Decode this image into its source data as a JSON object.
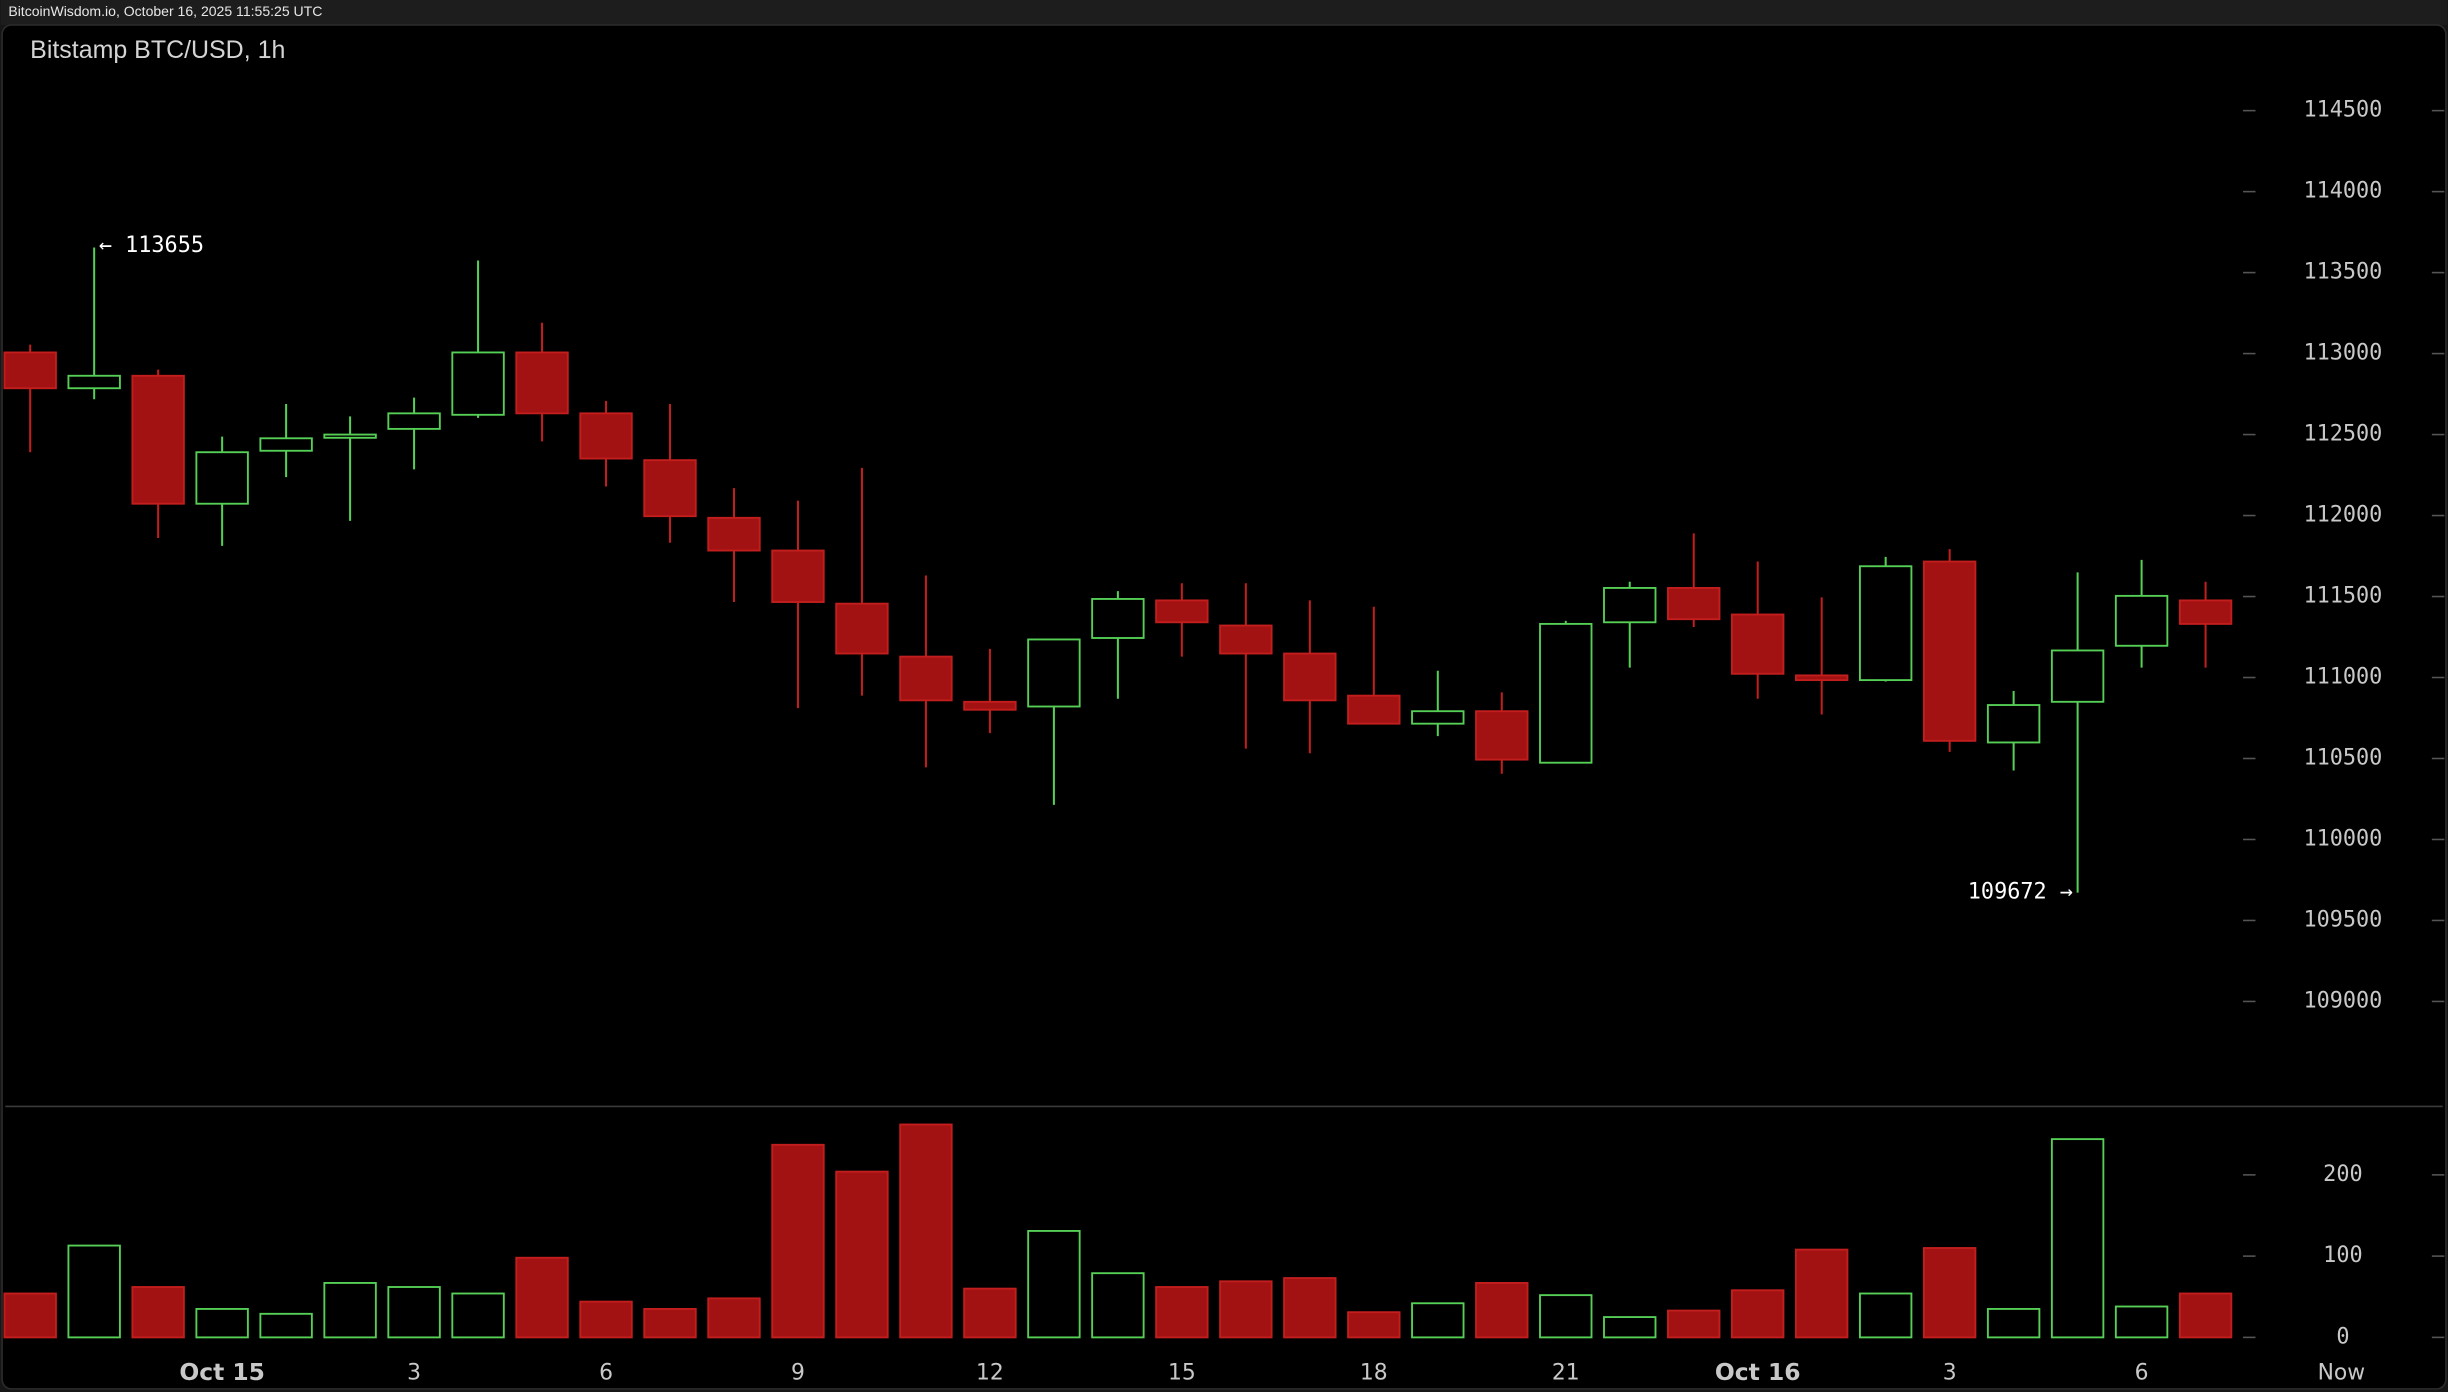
{
  "header": {
    "text": "BitcoinWisdom.io, October 16, 2025 11:55:25 UTC"
  },
  "chart_data": {
    "type": "candlestick",
    "title": "Bitstamp BTC/USD, 1h",
    "categories": [
      null,
      null,
      null,
      "Oct 15",
      null,
      null,
      "3",
      null,
      null,
      "6",
      null,
      null,
      "9",
      null,
      null,
      "12",
      null,
      null,
      "15",
      null,
      null,
      "18",
      null,
      null,
      "21",
      null,
      null,
      "Oct 16",
      null,
      null,
      "3",
      null,
      null,
      "6",
      null
    ],
    "now_label": "Now",
    "open": [
      113007,
      112786,
      112863,
      112073,
      112400,
      112480,
      112535,
      112622,
      113007,
      112631,
      112342,
      111986,
      111784,
      111456,
      111129,
      110850,
      110821,
      111244,
      111476,
      111321,
      111148,
      110888,
      110715,
      110792,
      110474,
      111341,
      111553,
      111389,
      111013,
      110984,
      111716,
      110599,
      110850,
      111196,
      111476
    ],
    "high": [
      113055,
      113655,
      112901,
      112487,
      112689,
      112612,
      112728,
      113575,
      113190,
      112708,
      112689,
      112169,
      112092,
      112294,
      111630,
      111177,
      111235,
      111533,
      111582,
      111582,
      111476,
      111437,
      111042,
      110908,
      111350,
      111591,
      111890,
      111716,
      111495,
      111745,
      111793,
      110917,
      111649,
      111726,
      111591
    ],
    "low": [
      112391,
      112718,
      111861,
      111813,
      112237,
      111967,
      112285,
      112603,
      112458,
      112179,
      111832,
      111466,
      110811,
      110888,
      110445,
      110657,
      110214,
      110869,
      111129,
      110561,
      110532,
      110715,
      110638,
      110406,
      110474,
      111061,
      111312,
      110869,
      110772,
      110975,
      110541,
      110426,
      109672,
      111061,
      111061
    ],
    "close": [
      112786,
      112863,
      112073,
      112391,
      112477,
      112500,
      112631,
      113007,
      112631,
      112352,
      111996,
      111784,
      111466,
      111148,
      110859,
      110801,
      111235,
      111485,
      111341,
      111148,
      110859,
      110715,
      110792,
      110493,
      111331,
      111553,
      111360,
      111023,
      110984,
      111687,
      110609,
      110830,
      111167,
      111504,
      111331
    ],
    "volume": [
      54,
      113,
      62,
      35,
      29,
      67,
      62,
      54,
      98,
      44,
      35,
      48,
      237,
      204,
      262,
      60,
      131,
      79,
      62,
      69,
      73,
      31,
      42,
      67,
      52,
      25,
      33,
      58,
      108,
      54,
      110,
      35,
      244,
      38,
      54
    ],
    "high_labels": [
      null,
      "← 113655",
      null,
      null,
      null,
      null,
      null,
      null,
      null,
      null,
      null,
      null,
      null,
      null,
      null,
      null,
      null,
      null,
      null,
      null,
      null,
      null,
      null,
      null,
      null,
      null,
      null,
      null,
      null,
      null,
      null,
      null,
      null,
      null,
      null
    ],
    "low_labels": [
      null,
      null,
      null,
      null,
      null,
      null,
      null,
      null,
      null,
      null,
      null,
      null,
      null,
      null,
      null,
      null,
      null,
      null,
      null,
      null,
      null,
      null,
      null,
      null,
      null,
      null,
      null,
      null,
      null,
      null,
      null,
      null,
      "109672 →",
      null,
      null
    ],
    "up_color": "#55cf55",
    "down_color": "#a31212",
    "ylim": [
      108400,
      115000
    ],
    "yticks": [
      109000,
      109500,
      110000,
      110500,
      111000,
      111500,
      112000,
      112500,
      113000,
      113500,
      114000,
      114500
    ],
    "volume_ylim": [
      0,
      290
    ],
    "volume_yticks": [
      0,
      100,
      200
    ]
  }
}
